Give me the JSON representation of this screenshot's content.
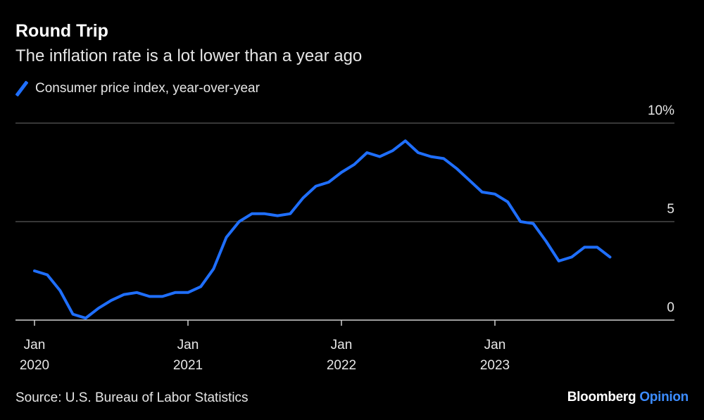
{
  "header": {
    "title": "Round Trip",
    "subtitle": "The inflation rate is a lot lower than a year ago"
  },
  "legend": {
    "label": "Consumer price index, year-over-year",
    "color": "#1f6fff"
  },
  "footer": {
    "source": "Source: U.S. Bureau of Labor Statistics",
    "brand_main": "Bloomberg",
    "brand_accent": "Opinion",
    "brand_accent_color": "#3c8cff"
  },
  "chart_data": {
    "type": "line",
    "title": "Round Trip",
    "subtitle": "The inflation rate is a lot lower than a year ago",
    "xlabel": "",
    "ylabel": "",
    "ylim": [
      0,
      10
    ],
    "yticks": [
      {
        "value": 10,
        "label": "10%"
      },
      {
        "value": 5,
        "label": "5"
      },
      {
        "value": 0,
        "label": "0"
      }
    ],
    "xticks": [
      {
        "index": 0,
        "line1": "Jan",
        "line2": "2020"
      },
      {
        "index": 12,
        "line1": "Jan",
        "line2": "2021"
      },
      {
        "index": 24,
        "line1": "Jan",
        "line2": "2022"
      },
      {
        "index": 36,
        "line1": "Jan",
        "line2": "2023"
      }
    ],
    "grid": true,
    "series": [
      {
        "name": "Consumer price index, year-over-year",
        "color": "#1f6fff",
        "start": "Jan 2020",
        "values": [
          2.5,
          2.3,
          1.5,
          0.3,
          0.1,
          0.6,
          1.0,
          1.3,
          1.4,
          1.2,
          1.2,
          1.4,
          1.4,
          1.7,
          2.6,
          4.2,
          5.0,
          5.4,
          5.4,
          5.3,
          5.4,
          6.2,
          6.8,
          7.0,
          7.5,
          7.9,
          8.5,
          8.3,
          8.6,
          9.1,
          8.5,
          8.3,
          8.2,
          7.7,
          7.1,
          6.5,
          6.4,
          6.0,
          5.0,
          4.9,
          4.0,
          3.0,
          3.2,
          3.7,
          3.7,
          3.2
        ]
      }
    ]
  }
}
